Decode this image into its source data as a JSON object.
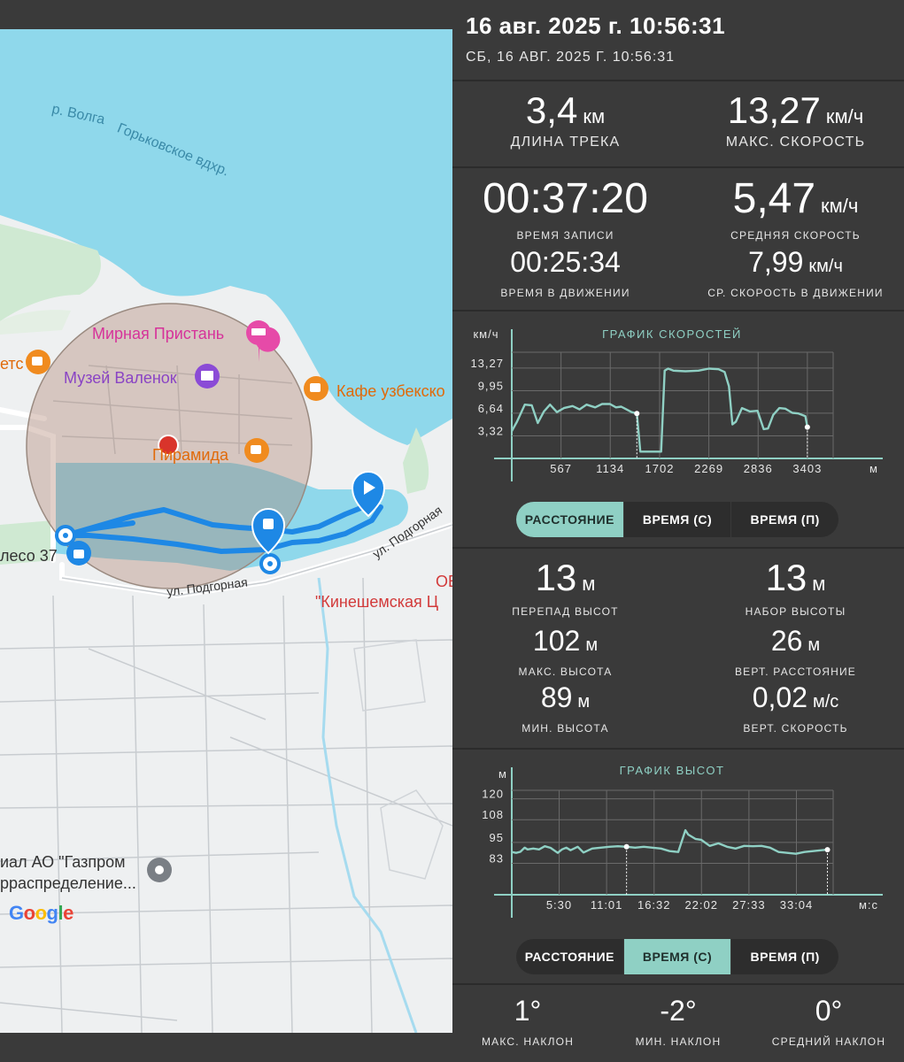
{
  "header": {
    "title": "16 авг. 2025 г. 10:56:31",
    "subtitle": "СБ, 16 АВГ. 2025 Г. 10:56:31"
  },
  "map": {
    "labels": {
      "river": "р. Волга",
      "reservoir": "Горьковское вдхр.",
      "mirnaya": "Мирная Пристань",
      "museum": "Музей Валенок",
      "cafe_left": "етс",
      "cafe_right": "Кафе узбекско",
      "pyramid": "Пирамида",
      "koleso": "лесо 37",
      "street1": "ул. Подгорная",
      "street2": "ул. Подгорная",
      "kineshma_top": "ОБ",
      "kineshma": "\"Кинешемская Ц",
      "gazprom1": "иал АО \"Газпром",
      "gazprom2": "рраспределение..."
    },
    "google": [
      "G",
      "o",
      "o",
      "g",
      "l",
      "e"
    ]
  },
  "stats_top": {
    "length": {
      "value": "3,4",
      "unit": "км",
      "label": "ДЛИНА ТРЕКА"
    },
    "max_speed": {
      "value": "13,27",
      "unit": "км/ч",
      "label": "МАКС. СКОРОСТЬ"
    },
    "record_time": {
      "value": "00:37:20",
      "unit": "",
      "label": "ВРЕМЯ ЗАПИСИ"
    },
    "avg_speed": {
      "value": "5,47",
      "unit": "км/ч",
      "label": "СРЕДНЯЯ СКОРОСТЬ"
    },
    "moving_time": {
      "value": "00:25:34",
      "unit": "",
      "label": "ВРЕМЯ В ДВИЖЕНИИ"
    },
    "avg_moving_speed": {
      "value": "7,99",
      "unit": "км/ч",
      "label": "СР. СКОРОСТЬ В ДВИЖЕНИИ"
    }
  },
  "stats_alt": {
    "elev_diff": {
      "value": "13",
      "unit": "м",
      "label": "ПЕРЕПАД ВЫСОТ"
    },
    "elev_gain": {
      "value": "13",
      "unit": "м",
      "label": "НАБОР ВЫСОТЫ"
    },
    "max_alt": {
      "value": "102",
      "unit": "м",
      "label": "МАКС. ВЫСОТА"
    },
    "vert_dist": {
      "value": "26",
      "unit": "м",
      "label": "ВЕРТ. РАССТОЯНИЕ"
    },
    "min_alt": {
      "value": "89",
      "unit": "м",
      "label": "МИН. ВЫСОТА"
    },
    "vert_speed": {
      "value": "0,02",
      "unit": "м/с",
      "label": "ВЕРТ. СКОРОСТЬ"
    }
  },
  "stats_slope": {
    "max": {
      "value": "1°",
      "label": "МАКС. НАКЛОН"
    },
    "min": {
      "value": "-2°",
      "label": "МИН. НАКЛОН"
    },
    "avg": {
      "value": "0°",
      "label": "СРЕДНИЙ НАКЛОН"
    }
  },
  "toggle_speed": {
    "options": [
      "РАССТОЯНИЕ",
      "ВРЕМЯ (С)",
      "ВРЕМЯ (П)"
    ],
    "active": 0
  },
  "toggle_alt": {
    "options": [
      "РАССТОЯНИЕ",
      "ВРЕМЯ (С)",
      "ВРЕМЯ (П)"
    ],
    "active": 1
  },
  "colors": {
    "accent": "#8fd0c4",
    "panel_bg": "#3a3a3a",
    "track": "#1e88e5",
    "water": "#8fd8eb"
  },
  "chart_data": [
    {
      "type": "line",
      "title": "ГРАФИК СКОРОСТЕЙ",
      "ylabel": "км/ч",
      "xlabel": "м",
      "y_ticks": [
        "13,27",
        "9,95",
        "6,64",
        "3,32"
      ],
      "x_ticks": [
        "567",
        "1134",
        "1702",
        "2269",
        "2836",
        "3403"
      ],
      "xlim": [
        0,
        3700
      ],
      "ylim": [
        0,
        15.6
      ],
      "series": [
        {
          "x": [
            0,
            60,
            150,
            230,
            300,
            370,
            440,
            520,
            600,
            700,
            780,
            860,
            960,
            1040,
            1130,
            1200,
            1260,
            1320,
            1380,
            1440,
            1480,
            1520,
            1720,
            1760,
            1800,
            1860,
            2000,
            2150,
            2270,
            2380,
            2450,
            2500,
            2540,
            2580,
            2650,
            2740,
            2830,
            2900,
            2950,
            3010,
            3080,
            3150,
            3230,
            3300,
            3380,
            3403
          ],
          "y": [
            4.0,
            5.4,
            7.9,
            7.8,
            5.2,
            6.9,
            7.9,
            6.8,
            7.4,
            7.7,
            7.2,
            7.9,
            7.5,
            8.0,
            8.0,
            7.5,
            7.6,
            7.2,
            6.8,
            6.6,
            1.0,
            1.0,
            1.0,
            12.9,
            13.2,
            12.9,
            12.8,
            12.9,
            13.2,
            13.1,
            12.7,
            10.6,
            5.0,
            5.4,
            7.4,
            6.9,
            7.0,
            4.3,
            4.4,
            6.4,
            7.4,
            7.3,
            6.7,
            6.6,
            6.2,
            4.6
          ]
        }
      ]
    },
    {
      "type": "line",
      "title": "ГРАФИК ВЫСОТ",
      "ylabel": "м",
      "xlabel": "м:с",
      "y_ticks": [
        "120",
        "108",
        "95",
        "83"
      ],
      "x_ticks": [
        "5:30",
        "11:01",
        "16:32",
        "22:02",
        "27:33",
        "33:04"
      ],
      "xlim": [
        0,
        2240
      ],
      "ylim": [
        65,
        134
      ],
      "series": [
        {
          "x": [
            0,
            30,
            60,
            90,
            110,
            150,
            190,
            230,
            270,
            320,
            350,
            380,
            410,
            460,
            500,
            560,
            620,
            680,
            740,
            800,
            860,
            920,
            980,
            1040,
            1100,
            1160,
            1210,
            1230,
            1280,
            1320,
            1380,
            1440,
            1500,
            1560,
            1620,
            1680,
            1740,
            1800,
            1860,
            1920,
            1980,
            2040,
            2100,
            2160,
            2200
          ],
          "y": [
            89.5,
            89.0,
            89.6,
            92.0,
            91.0,
            91.5,
            91.0,
            92.8,
            91.9,
            89.0,
            91.0,
            92.0,
            90.5,
            92.5,
            89.2,
            91.5,
            92.0,
            92.5,
            92.8,
            92.5,
            92.0,
            92.5,
            92.0,
            91.5,
            90.0,
            89.5,
            102.0,
            99.5,
            97.0,
            96.5,
            93.0,
            94.5,
            92.5,
            91.5,
            93.0,
            92.8,
            93.0,
            92.0,
            89.5,
            89.0,
            88.5,
            89.5,
            90.0,
            90.5,
            90.8
          ]
        }
      ]
    }
  ]
}
